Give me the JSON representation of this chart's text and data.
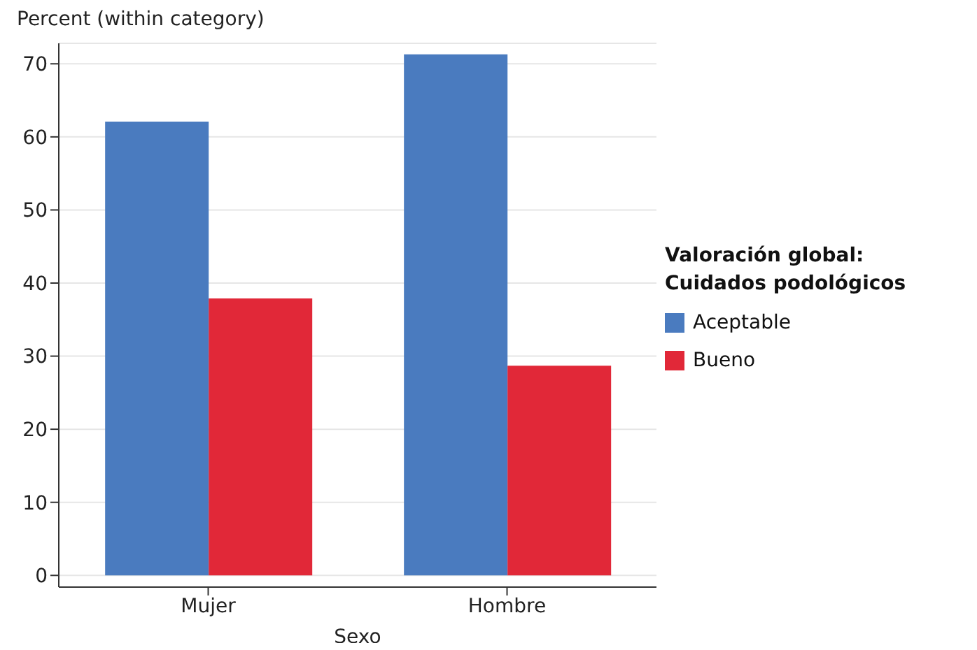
{
  "chart_data": {
    "type": "bar",
    "xlabel": "Sexo",
    "ylabel": "Percent (within category)",
    "legend_title": "Valoración global: Cuidados podológicos",
    "categories": [
      "Mujer",
      "Hombre"
    ],
    "series": [
      {
        "name": "Aceptable",
        "color": "#4a7bbf",
        "values": [
          62.1,
          71.3
        ]
      },
      {
        "name": "Bueno",
        "color": "#e12838",
        "values": [
          37.9,
          28.7
        ]
      }
    ],
    "ylim": [
      -1.6,
      72.8
    ],
    "yticks": [
      0,
      10,
      20,
      30,
      40,
      50,
      60,
      70
    ],
    "grid": "y",
    "legend": "right"
  }
}
